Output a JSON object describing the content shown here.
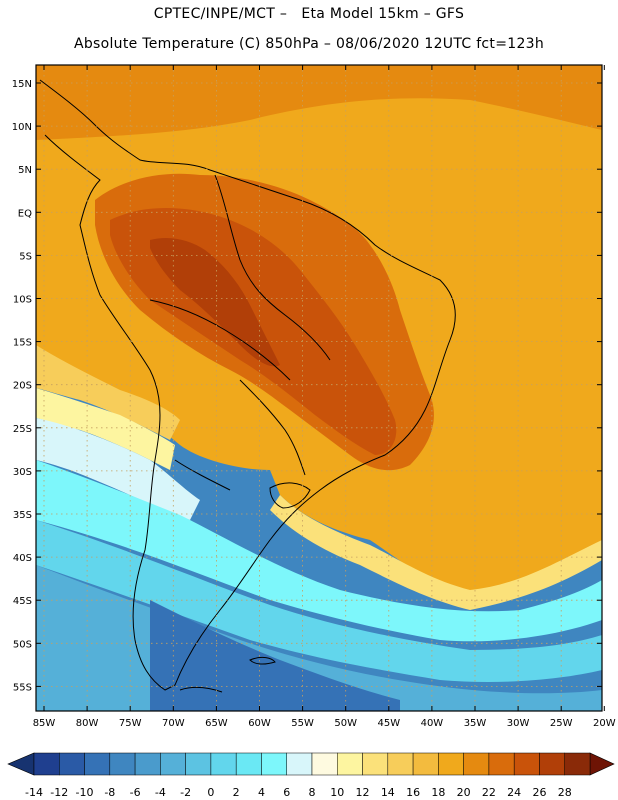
{
  "header": {
    "line1": "CPTEC/INPE/MCT –   Eta Model 15km – GFS",
    "line2": "Absolute Temperature (C) 850hPa – 08/06/2020 12UTC fct=123h"
  },
  "map": {
    "lat_labels": [
      "15N",
      "10N",
      "5N",
      "EQ",
      "5S",
      "10S",
      "15S",
      "20S",
      "25S",
      "30S",
      "35S",
      "40S",
      "45S",
      "50S",
      "55S"
    ],
    "lon_labels": [
      "85W",
      "80W",
      "75W",
      "70W",
      "65W",
      "60W",
      "55W",
      "50W",
      "45W",
      "40W",
      "35W",
      "30W",
      "25W",
      "20W"
    ]
  },
  "colorbar": {
    "labels": [
      "-14",
      "-12",
      "-10",
      "-8",
      "-6",
      "-4",
      "-2",
      "0",
      "2",
      "4",
      "6",
      "8",
      "10",
      "12",
      "14",
      "16",
      "18",
      "20",
      "22",
      "24",
      "26",
      "28"
    ],
    "colors": [
      "#1f3f8f",
      "#2a5aa6",
      "#3572b6",
      "#3f86c0",
      "#4a9bcc",
      "#55b0d8",
      "#5cc3e2",
      "#62d6ec",
      "#6ae8f4",
      "#7df7fb",
      "#d8f6fa",
      "#fefae0",
      "#fdf5a0",
      "#fbe17a",
      "#f7cd5a",
      "#f3bb3e",
      "#f0a91c",
      "#e58a10",
      "#d96c0c",
      "#c9530a",
      "#b13f08",
      "#8a2a08"
    ],
    "under_color": "#173370",
    "over_color": "#6e1405"
  }
}
